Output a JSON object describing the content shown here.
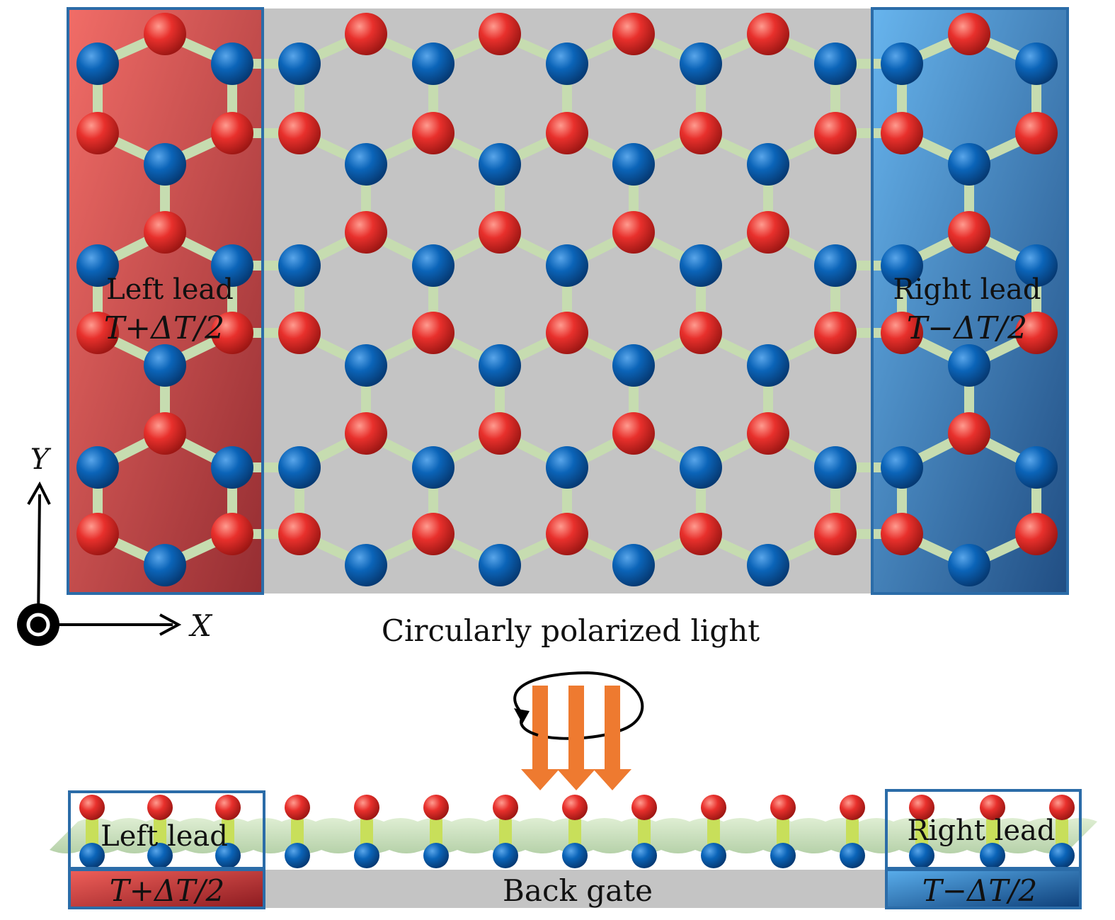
{
  "top_view": {
    "left_lead": {
      "name": "Left lead",
      "temp": "T+ΔT/2"
    },
    "right_lead": {
      "name": "Right lead",
      "temp": "T−ΔT/2"
    },
    "axes": {
      "x": "X",
      "y": "Y"
    }
  },
  "light": {
    "label": "Circularly polarized light"
  },
  "side_view": {
    "left_lead": {
      "name": "Left lead",
      "temp": "T+ΔT/2"
    },
    "right_lead": {
      "name": "Right lead",
      "temp": "T−ΔT/2"
    },
    "gate": "Back gate"
  },
  "colors": {
    "red_atom": "#e8302c",
    "blue_atom": "#0b64b8",
    "bond": "#c6dcb0",
    "center_region": "#c4c4c4",
    "left_lead": "#d9403c",
    "right_lead": "#2f7cc0",
    "light_arrows": "#ee7a30"
  }
}
